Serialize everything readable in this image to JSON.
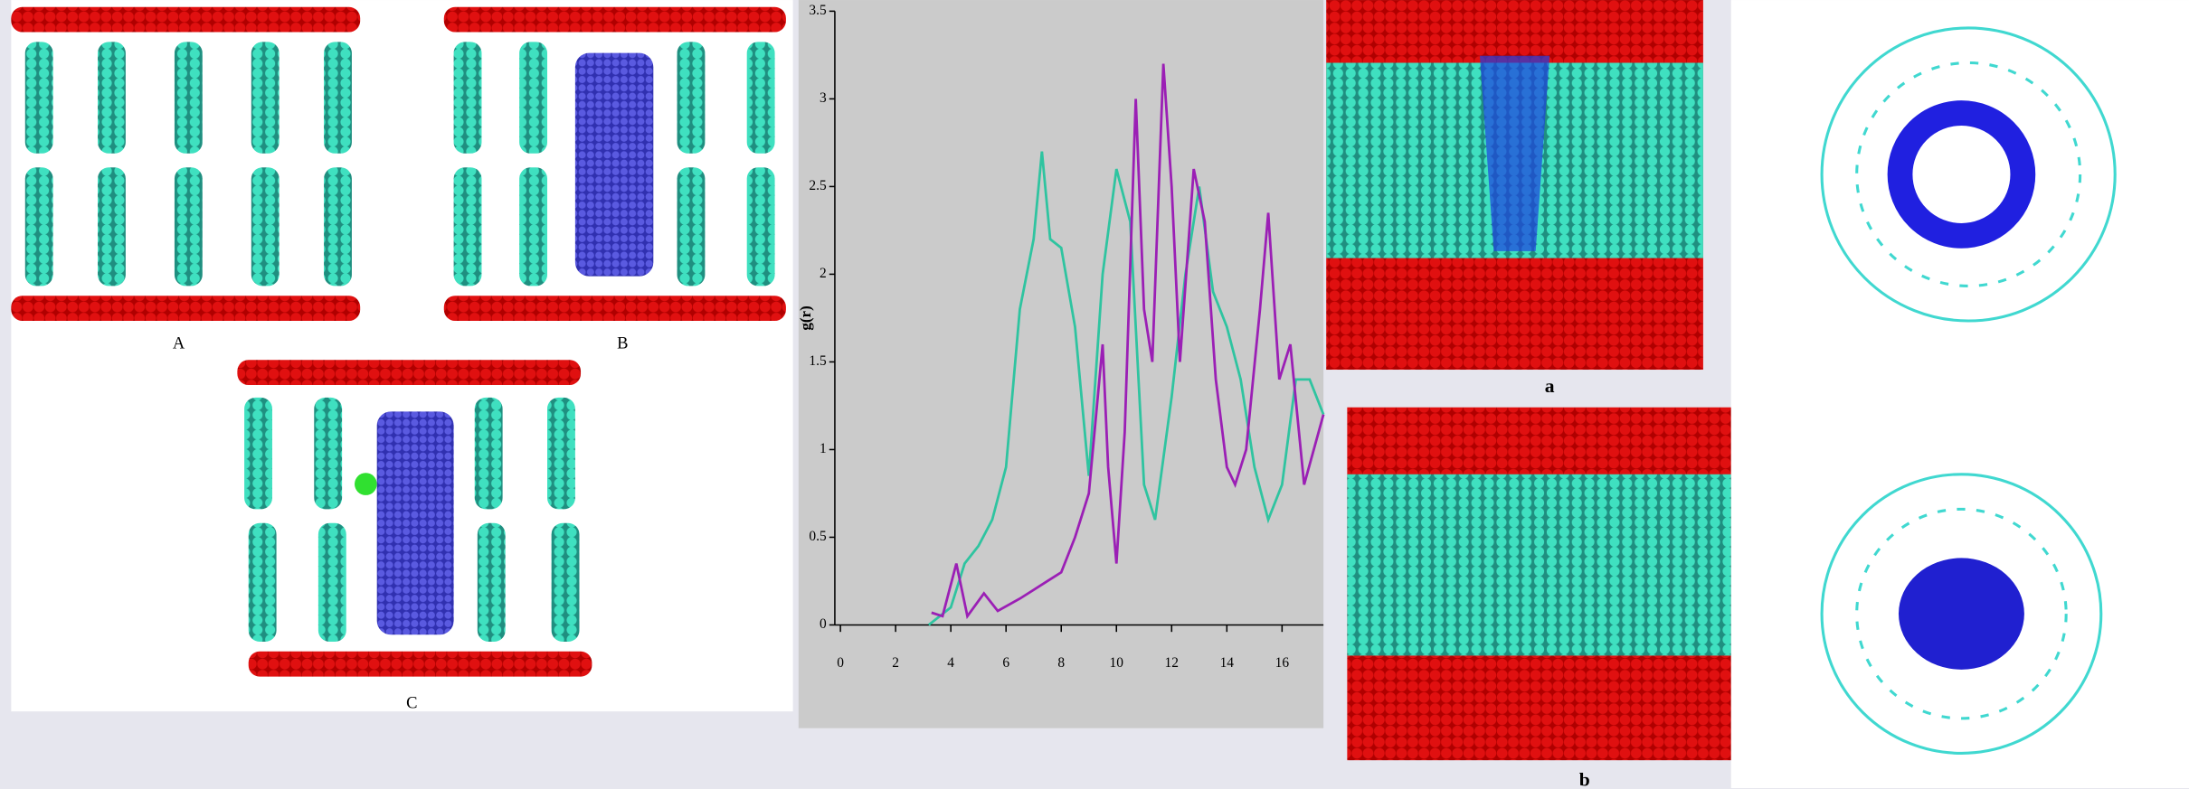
{
  "panel_labels": [
    "A",
    "B",
    "C",
    "a",
    "b"
  ],
  "chart_data": {
    "type": "line",
    "y_label": "g(r)",
    "xlim": [
      0,
      17.5
    ],
    "xticks": [
      0,
      2,
      4,
      6,
      8,
      10,
      12,
      14,
      16
    ],
    "ylim": [
      0,
      3.5
    ],
    "yticks": [
      0,
      0.5,
      1,
      1.5,
      2,
      2.5,
      3,
      3.5
    ],
    "series": [
      {
        "color": "#2fc4a0",
        "x": [
          3.2,
          4,
          4.5,
          5,
          5.5,
          6,
          6.5,
          7,
          7.3,
          7.6,
          8,
          8.5,
          9,
          9.5,
          10,
          10.5,
          11,
          11.4,
          12,
          12.5,
          13,
          13.5,
          14,
          14.5,
          15,
          15.5,
          16,
          16.5,
          17,
          17.5
        ],
        "values": [
          0,
          0.1,
          0.35,
          0.45,
          0.6,
          0.9,
          1.8,
          2.2,
          2.7,
          2.2,
          2.15,
          1.7,
          0.85,
          2.0,
          2.6,
          2.3,
          0.8,
          0.6,
          1.3,
          2.0,
          2.5,
          1.9,
          1.7,
          1.4,
          0.9,
          0.6,
          0.8,
          1.4,
          1.4,
          1.2
        ]
      },
      {
        "color": "#9b1fb5",
        "x": [
          3.3,
          3.7,
          4.2,
          4.6,
          5.2,
          5.7,
          6.5,
          7.5,
          8,
          8.5,
          9,
          9.5,
          9.7,
          10,
          10.3,
          10.7,
          11,
          11.3,
          11.7,
          12,
          12.3,
          12.8,
          13.2,
          13.6,
          14,
          14.3,
          14.7,
          15.2,
          15.5,
          15.9,
          16.3,
          16.8,
          17.5
        ],
        "values": [
          0.07,
          0.05,
          0.35,
          0.05,
          0.18,
          0.08,
          0.15,
          0.25,
          0.3,
          0.5,
          0.75,
          1.6,
          0.9,
          0.35,
          1.1,
          3.0,
          1.8,
          1.5,
          3.2,
          2.5,
          1.5,
          2.6,
          2.3,
          1.4,
          0.9,
          0.8,
          1.0,
          1.8,
          2.35,
          1.4,
          1.6,
          0.8,
          1.2
        ]
      }
    ]
  }
}
